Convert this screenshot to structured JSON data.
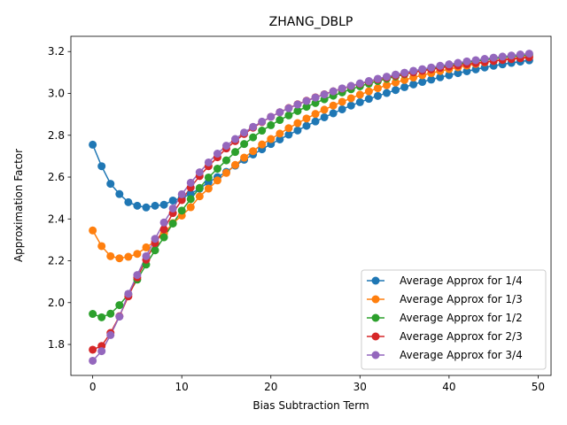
{
  "chart_data": {
    "type": "line",
    "title": "ZHANG_DBLP",
    "xlabel": "Bias Subtraction Term",
    "ylabel": "Approximation Factor",
    "xlim": [
      -2.45,
      51.45
    ],
    "ylim": [
      1.652,
      3.273
    ],
    "x_ticks": [
      0,
      10,
      20,
      30,
      40,
      50
    ],
    "y_ticks": [
      1.8,
      2.0,
      2.2,
      2.4,
      2.6,
      2.8,
      3.0,
      3.2
    ],
    "grid": false,
    "legend_position": "bottom-right",
    "marker": "circle",
    "x": [
      0,
      1,
      2,
      3,
      4,
      5,
      6,
      7,
      8,
      9,
      10,
      11,
      12,
      13,
      14,
      15,
      16,
      17,
      18,
      19,
      20,
      21,
      22,
      23,
      24,
      25,
      26,
      27,
      28,
      29,
      30,
      31,
      32,
      33,
      34,
      35,
      36,
      37,
      38,
      39,
      40,
      41,
      42,
      43,
      44,
      45,
      46,
      47,
      48,
      49
    ],
    "series": [
      {
        "name": "Average Approx for 1/4",
        "color": "#1f77b4",
        "values": [
          2.755,
          2.652,
          2.568,
          2.519,
          2.48,
          2.463,
          2.455,
          2.463,
          2.468,
          2.488,
          2.5,
          2.52,
          2.545,
          2.575,
          2.6,
          2.625,
          2.655,
          2.683,
          2.708,
          2.733,
          2.758,
          2.78,
          2.803,
          2.823,
          2.845,
          2.866,
          2.886,
          2.905,
          2.924,
          2.942,
          2.958,
          2.974,
          2.988,
          3.002,
          3.016,
          3.03,
          3.043,
          3.055,
          3.066,
          3.077,
          3.087,
          3.097,
          3.106,
          3.115,
          3.124,
          3.132,
          3.139,
          3.146,
          3.152,
          3.158
        ]
      },
      {
        "name": "Average Approx for 1/3",
        "color": "#ff7f0e",
        "values": [
          2.345,
          2.27,
          2.222,
          2.212,
          2.219,
          2.233,
          2.264,
          2.292,
          2.33,
          2.38,
          2.416,
          2.456,
          2.508,
          2.545,
          2.584,
          2.62,
          2.658,
          2.693,
          2.724,
          2.756,
          2.782,
          2.808,
          2.834,
          2.858,
          2.88,
          2.902,
          2.922,
          2.942,
          2.96,
          2.977,
          2.994,
          3.01,
          3.025,
          3.039,
          3.052,
          3.064,
          3.076,
          3.087,
          3.097,
          3.107,
          3.116,
          3.125,
          3.133,
          3.141,
          3.148,
          3.155,
          3.161,
          3.167,
          3.172,
          3.177
        ]
      },
      {
        "name": "Average Approx for 1/2",
        "color": "#2ca02c",
        "values": [
          1.946,
          1.93,
          1.947,
          1.988,
          2.04,
          2.11,
          2.182,
          2.25,
          2.312,
          2.378,
          2.44,
          2.495,
          2.548,
          2.598,
          2.64,
          2.68,
          2.72,
          2.758,
          2.79,
          2.822,
          2.848,
          2.873,
          2.895,
          2.916,
          2.936,
          2.954,
          2.972,
          2.989,
          3.005,
          3.02,
          3.034,
          3.047,
          3.059,
          3.07,
          3.081,
          3.091,
          3.101,
          3.11,
          3.118,
          3.126,
          3.134,
          3.141,
          3.148,
          3.154,
          3.16,
          3.166,
          3.171,
          3.176,
          3.18,
          3.184
        ]
      },
      {
        "name": "Average Approx for 2/3",
        "color": "#d62728",
        "values": [
          1.775,
          1.793,
          1.855,
          1.935,
          2.03,
          2.12,
          2.205,
          2.285,
          2.35,
          2.428,
          2.49,
          2.55,
          2.605,
          2.652,
          2.695,
          2.737,
          2.772,
          2.806,
          2.836,
          2.863,
          2.888,
          2.91,
          2.93,
          2.948,
          2.965,
          2.981,
          2.996,
          3.01,
          3.023,
          3.035,
          3.046,
          3.057,
          3.067,
          3.076,
          3.085,
          3.093,
          3.101,
          3.108,
          3.115,
          3.122,
          3.128,
          3.134,
          3.14,
          3.145,
          3.15,
          3.155,
          3.16,
          3.164,
          3.168,
          3.172
        ]
      },
      {
        "name": "Average Approx for 3/4",
        "color": "#9467bd",
        "values": [
          1.722,
          1.768,
          1.845,
          1.933,
          2.042,
          2.132,
          2.222,
          2.305,
          2.383,
          2.45,
          2.518,
          2.573,
          2.623,
          2.67,
          2.712,
          2.75,
          2.782,
          2.813,
          2.84,
          2.865,
          2.888,
          2.91,
          2.929,
          2.947,
          2.964,
          2.98,
          2.995,
          3.01,
          3.024,
          3.036,
          3.048,
          3.059,
          3.07,
          3.08,
          3.09,
          3.099,
          3.108,
          3.116,
          3.124,
          3.132,
          3.139,
          3.146,
          3.153,
          3.159,
          3.165,
          3.171,
          3.176,
          3.181,
          3.186,
          3.19
        ]
      }
    ]
  }
}
